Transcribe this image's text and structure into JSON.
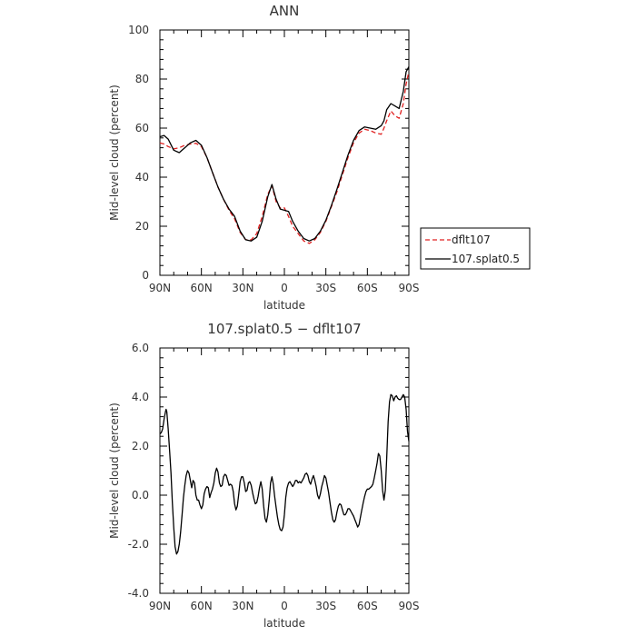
{
  "chart_data": [
    {
      "type": "line",
      "title": "ANN",
      "xlabel": "latitude",
      "ylabel": "Mid-level cloud (percent)",
      "xlim": [
        90,
        -90
      ],
      "ylim": [
        0,
        100
      ],
      "xtick_values": [
        90,
        60,
        30,
        0,
        -30,
        -60,
        -90
      ],
      "xtick_labels": [
        "90N",
        "60N",
        "30N",
        "0",
        "30S",
        "60S",
        "90S"
      ],
      "ytick_values": [
        0,
        20,
        40,
        60,
        80,
        100
      ],
      "ytick_labels": [
        "0",
        "20",
        "40",
        "60",
        "80",
        "100"
      ],
      "legend": {
        "placement": "right-outside",
        "entries": [
          "dflt107",
          "107.splat0.5"
        ]
      },
      "series": [
        {
          "name": "dflt107",
          "color": "#e02020",
          "dash": "dashed",
          "x": [
            90,
            87,
            84,
            80,
            76,
            72,
            68,
            64,
            60,
            56,
            52,
            48,
            44,
            40,
            36,
            32,
            28,
            24,
            20,
            16,
            12,
            9,
            6,
            3,
            0,
            -3,
            -6,
            -10,
            -14,
            -18,
            -22,
            -26,
            -30,
            -34,
            -38,
            -42,
            -46,
            -50,
            -54,
            -58,
            -62,
            -66,
            -70,
            -72,
            -74,
            -77,
            -80,
            -83,
            -86,
            -88,
            -90
          ],
          "values": [
            54,
            53.5,
            52.5,
            51.5,
            52,
            53,
            53.5,
            53.8,
            52.5,
            48,
            42,
            36,
            31,
            26.5,
            23,
            17.5,
            14.5,
            14.5,
            17,
            24,
            33,
            36.5,
            30,
            27.5,
            27.5,
            24,
            20,
            17,
            14,
            13,
            14.5,
            17.5,
            22,
            28,
            34,
            41,
            48,
            54,
            58,
            59.5,
            59,
            58,
            57.5,
            60,
            63,
            67,
            65,
            64,
            70,
            78,
            83
          ]
        },
        {
          "name": "107.splat0.5",
          "color": "#000000",
          "dash": "solid",
          "x": [
            90,
            87,
            84,
            80,
            76,
            72,
            68,
            64,
            60,
            56,
            52,
            48,
            44,
            40,
            36,
            32,
            28,
            24,
            20,
            16,
            12,
            9,
            6,
            3,
            0,
            -3,
            -6,
            -10,
            -14,
            -18,
            -22,
            -26,
            -30,
            -34,
            -38,
            -42,
            -46,
            -50,
            -54,
            -58,
            -62,
            -66,
            -70,
            -72,
            -74,
            -77,
            -80,
            -83,
            -86,
            -88,
            -90
          ],
          "values": [
            56.5,
            57,
            55.5,
            51,
            50,
            52,
            54,
            55,
            53,
            48,
            42,
            36,
            31,
            27,
            24,
            18,
            14.5,
            14,
            15.5,
            22,
            32,
            37,
            31,
            27,
            26.5,
            26,
            22,
            18,
            15,
            14,
            15,
            18,
            22.5,
            28.5,
            35,
            42,
            49,
            55,
            59,
            60.5,
            60,
            59.5,
            61,
            63,
            67.5,
            70,
            69,
            68,
            75,
            83,
            85
          ]
        }
      ]
    },
    {
      "type": "line",
      "title": "107.splat0.5 − dflt107",
      "xlabel": "latitude",
      "ylabel": "Mid-level cloud (percent)",
      "xlim": [
        90,
        -90
      ],
      "ylim": [
        -4,
        6
      ],
      "xtick_values": [
        90,
        60,
        30,
        0,
        -30,
        -60,
        -90
      ],
      "xtick_labels": [
        "90N",
        "60N",
        "30N",
        "0",
        "30S",
        "60S",
        "90S"
      ],
      "ytick_values": [
        -4,
        -2,
        0,
        2,
        4,
        6
      ],
      "ytick_labels": [
        "-4.0",
        "-2.0",
        "0.0",
        "2.0",
        "4.0",
        "6.0"
      ],
      "series": [
        {
          "color": "#000000",
          "dash": "solid",
          "x": [
            90,
            89,
            88,
            87,
            86,
            85.5,
            85,
            84,
            83,
            82,
            81,
            80,
            79,
            78,
            77,
            76,
            75,
            74,
            73,
            72,
            71,
            70,
            69,
            68,
            67,
            66,
            65,
            64,
            63,
            62,
            61,
            60,
            59,
            58,
            57,
            56,
            55,
            54,
            53,
            52,
            51,
            50,
            49,
            48,
            47,
            46,
            45,
            44,
            43,
            42,
            41,
            40,
            39,
            38,
            37,
            36,
            35,
            34,
            33,
            32,
            31,
            30,
            29,
            28,
            27,
            26,
            25,
            24,
            23,
            22,
            21,
            20,
            19,
            18,
            17,
            16,
            15,
            14,
            13,
            12,
            11,
            10,
            9,
            8,
            7,
            6,
            5,
            4,
            3,
            2,
            1,
            0,
            -1,
            -2,
            -3,
            -4,
            -5,
            -6,
            -7,
            -8,
            -9,
            -10,
            -11,
            -12,
            -13,
            -14,
            -15,
            -16,
            -17,
            -18,
            -19,
            -20,
            -21,
            -22,
            -23,
            -24,
            -25,
            -26,
            -27,
            -28,
            -29,
            -30,
            -31,
            -32,
            -33,
            -34,
            -35,
            -36,
            -37,
            -38,
            -39,
            -40,
            -41,
            -42,
            -43,
            -44,
            -45,
            -46,
            -47,
            -48,
            -49,
            -50,
            -51,
            -52,
            -53,
            -54,
            -55,
            -56,
            -57,
            -58,
            -59,
            -60,
            -61,
            -62,
            -63,
            -64,
            -65,
            -66,
            -67,
            -68,
            -69,
            -70,
            -71,
            -72,
            -73,
            -74,
            -75,
            -76,
            -77,
            -78,
            -79,
            -80,
            -81,
            -82,
            -83,
            -84,
            -85,
            -86,
            -87,
            -88,
            -89,
            -90
          ],
          "values": [
            2.5,
            2.55,
            2.7,
            3.1,
            3.4,
            3.5,
            3.4,
            2.7,
            1.8,
            0.9,
            -0.3,
            -1.3,
            -2.1,
            -2.4,
            -2.3,
            -2.0,
            -1.5,
            -0.8,
            -0.1,
            0.4,
            0.8,
            1.0,
            0.9,
            0.6,
            0.3,
            0.6,
            0.5,
            0.0,
            -0.2,
            -0.2,
            -0.4,
            -0.55,
            -0.4,
            0.05,
            0.25,
            0.35,
            0.3,
            -0.1,
            0.1,
            0.25,
            0.5,
            0.9,
            1.1,
            0.95,
            0.5,
            0.35,
            0.4,
            0.75,
            0.85,
            0.8,
            0.6,
            0.4,
            0.45,
            0.4,
            0.15,
            -0.35,
            -0.6,
            -0.45,
            0.05,
            0.55,
            0.75,
            0.75,
            0.5,
            0.15,
            0.2,
            0.5,
            0.55,
            0.4,
            0.1,
            -0.15,
            -0.35,
            -0.3,
            -0.05,
            0.3,
            0.55,
            0.25,
            -0.45,
            -0.95,
            -1.1,
            -0.8,
            -0.2,
            0.5,
            0.75,
            0.45,
            -0.05,
            -0.5,
            -0.9,
            -1.2,
            -1.4,
            -1.45,
            -1.3,
            -0.8,
            -0.1,
            0.3,
            0.5,
            0.55,
            0.45,
            0.35,
            0.45,
            0.6,
            0.6,
            0.5,
            0.55,
            0.5,
            0.6,
            0.7,
            0.85,
            0.9,
            0.8,
            0.55,
            0.45,
            0.65,
            0.8,
            0.6,
            0.35,
            0.0,
            -0.15,
            0.05,
            0.35,
            0.55,
            0.8,
            0.7,
            0.4,
            0.1,
            -0.3,
            -0.7,
            -1.0,
            -1.1,
            -1.0,
            -0.7,
            -0.45,
            -0.35,
            -0.4,
            -0.6,
            -0.8,
            -0.8,
            -0.7,
            -0.55,
            -0.55,
            -0.65,
            -0.75,
            -0.85,
            -1.0,
            -1.15,
            -1.3,
            -1.2,
            -0.9,
            -0.6,
            -0.3,
            -0.05,
            0.15,
            0.25,
            0.25,
            0.3,
            0.35,
            0.45,
            0.7,
            1.0,
            1.3,
            1.7,
            1.6,
            1.0,
            0.2,
            -0.2,
            0.2,
            1.5,
            3.0,
            3.8,
            4.1,
            4.05,
            3.85,
            4.0,
            4.05,
            3.95,
            3.9,
            3.9,
            4.0,
            4.1,
            4.0,
            3.5,
            2.6,
            2.2
          ]
        }
      ]
    }
  ]
}
